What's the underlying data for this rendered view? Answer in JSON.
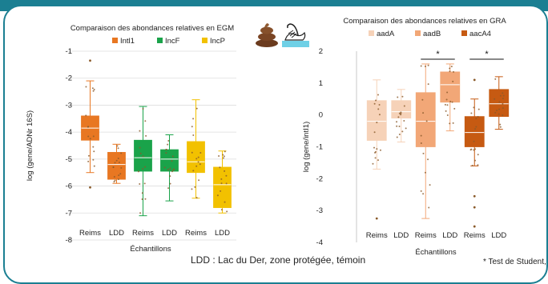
{
  "colors": {
    "frame": "#1b7f92",
    "intl1": "#e87722",
    "incF": "#1aa34a",
    "incP": "#f2c100",
    "aadA": "#f6d2b8",
    "aadB": "#f2a777",
    "aacA4": "#c65a12",
    "points": "#8a5a2a"
  },
  "icons": [
    "poop-icon",
    "swan-icon"
  ],
  "footer": {
    "ldd_note": "LDD : Lac du Der, zone protégée, témoin",
    "test_note": "* Test de Student,"
  },
  "chart_data": [
    {
      "type": "box",
      "title": "Comparaison des abondances relatives en EGM",
      "ylabel": "log (gene/ADNr 16S)",
      "xlabel": "Échantillons",
      "ylim": [
        -8,
        -1
      ],
      "yticks": [
        -1,
        -2,
        -3,
        -4,
        -5,
        -6,
        -7,
        -8
      ],
      "grid": true,
      "legend": {
        "position": "top",
        "entries": [
          {
            "name": "Intl1",
            "color": "#e87722"
          },
          {
            "name": "IncF",
            "color": "#1aa34a"
          },
          {
            "name": "IncP",
            "color": "#f2c100"
          }
        ]
      },
      "boxes": [
        {
          "label": "Reims",
          "group": "Intl1",
          "color": "#e87722",
          "min": -5.5,
          "q1": -4.3,
          "median": -3.85,
          "mean": -3.8,
          "q3": -3.4,
          "max": -2.1
        },
        {
          "label": "LDD",
          "group": "Intl1",
          "color": "#e87722",
          "min": -5.9,
          "q1": -5.75,
          "median": -5.2,
          "mean": -5.2,
          "q3": -4.75,
          "max": -4.45
        },
        {
          "label": "Reims",
          "group": "IncF",
          "color": "#1aa34a",
          "min": -7.1,
          "q1": -5.45,
          "median": -4.95,
          "mean": -5.0,
          "q3": -4.3,
          "max": -3.05
        },
        {
          "label": "LDD",
          "group": "IncF",
          "color": "#1aa34a",
          "min": -6.55,
          "q1": -5.45,
          "median": -5.0,
          "mean": -5.05,
          "q3": -4.65,
          "max": -4.1
        },
        {
          "label": "Reims",
          "group": "IncP",
          "color": "#f2c100",
          "min": -6.45,
          "q1": -5.5,
          "median": -5.1,
          "mean": -5.05,
          "q3": -4.35,
          "max": -2.8
        },
        {
          "label": "LDD",
          "group": "IncP",
          "color": "#f2c100",
          "min": -7.0,
          "q1": -6.8,
          "median": -5.95,
          "mean": -6.0,
          "q3": -5.3,
          "max": -4.7
        }
      ],
      "outliers": [
        {
          "box": 0,
          "y": -1.35
        },
        {
          "box": 0,
          "y": -6.05
        }
      ]
    },
    {
      "type": "box",
      "title": "Comparaison des abondances relatives en GRA",
      "ylabel": "log (gene/intI1)",
      "xlabel": "Échantillons",
      "ylim": [
        -4,
        2
      ],
      "yticks": [
        2,
        1,
        0,
        -1,
        -2,
        -3,
        -4
      ],
      "grid": false,
      "legend": {
        "position": "top",
        "entries": [
          {
            "name": "aadA",
            "color": "#f6d2b8"
          },
          {
            "name": "aadB",
            "color": "#f2a777"
          },
          {
            "name": "aacA4",
            "color": "#c65a12"
          }
        ]
      },
      "boxes": [
        {
          "label": "Reims",
          "group": "aadA",
          "color": "#f6d2b8",
          "min": -1.7,
          "q1": -0.8,
          "median": -0.2,
          "mean": -0.15,
          "q3": 0.45,
          "max": 1.1
        },
        {
          "label": "LDD",
          "group": "aadA",
          "color": "#f6d2b8",
          "min": -0.85,
          "q1": -0.1,
          "median": 0.1,
          "mean": 0.1,
          "q3": 0.45,
          "max": 0.8
        },
        {
          "label": "Reims",
          "group": "aadB",
          "color": "#f2a777",
          "min": -3.25,
          "q1": -1.0,
          "median": -0.2,
          "mean": -0.3,
          "q3": 0.7,
          "max": 1.6
        },
        {
          "label": "LDD",
          "group": "aadB",
          "color": "#f2a777",
          "min": -0.5,
          "q1": 0.4,
          "median": 0.95,
          "mean": 0.9,
          "q3": 1.35,
          "max": 1.6
        },
        {
          "label": "Reims",
          "group": "aacA4",
          "color": "#c65a12",
          "min": -1.6,
          "q1": -1.0,
          "median": -0.55,
          "mean": -0.6,
          "q3": -0.05,
          "max": 0.5
        },
        {
          "label": "LDD",
          "group": "aacA4",
          "color": "#c65a12",
          "min": -0.45,
          "q1": -0.05,
          "median": 0.35,
          "mean": 0.35,
          "q3": 0.8,
          "max": 1.2
        }
      ],
      "outliers": [
        {
          "box": 0,
          "y": -3.25
        },
        {
          "box": 4,
          "y": -2.55
        },
        {
          "box": 4,
          "y": -2.9
        },
        {
          "box": 4,
          "y": -3.5
        },
        {
          "box": 4,
          "y": 1.1
        }
      ],
      "significance": [
        {
          "from": 2,
          "to": 3,
          "label": "*"
        },
        {
          "from": 4,
          "to": 5,
          "label": "*"
        }
      ]
    }
  ]
}
